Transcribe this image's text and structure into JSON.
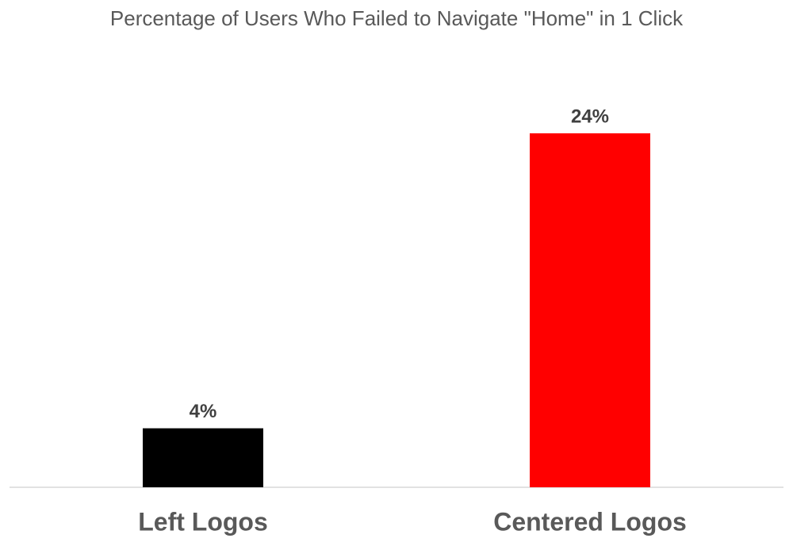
{
  "chart_data": {
    "type": "bar",
    "title": "Percentage of Users Who Failed to Navigate \"Home\" in 1 Click",
    "categories": [
      "Left Logos",
      "Centered Logos"
    ],
    "values": [
      4,
      24
    ],
    "value_labels": [
      "4%",
      "24%"
    ],
    "colors": [
      "#000000",
      "#ff0000"
    ]
  }
}
